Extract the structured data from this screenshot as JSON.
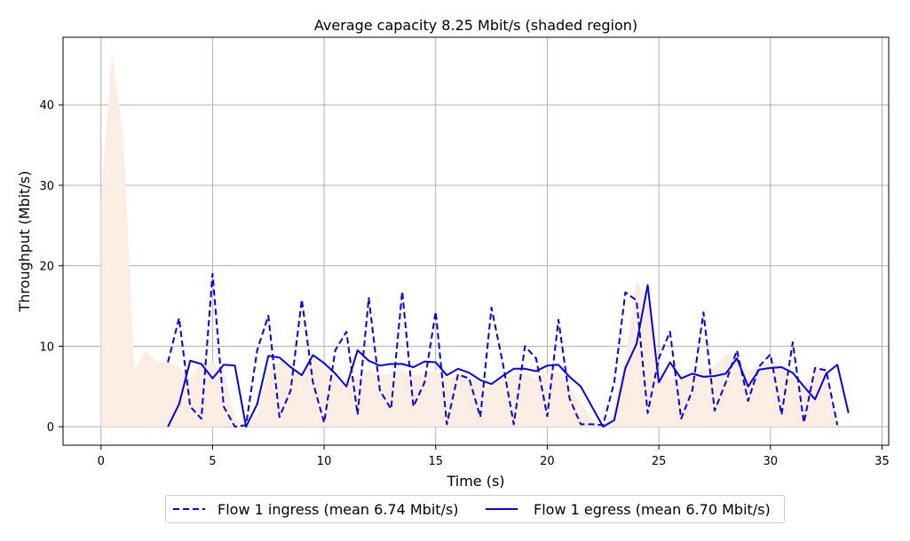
{
  "chart_data": {
    "type": "line",
    "title": "Average capacity 8.25 Mbit/s (shaded region)",
    "xlabel": "Time (s)",
    "ylabel": "Throughput (Mbit/s)",
    "xlim": [
      -1.7,
      35.3
    ],
    "ylim": [
      -2.3,
      48.4
    ],
    "xticks": [
      0,
      5,
      10,
      15,
      20,
      25,
      30,
      35
    ],
    "yticks": [
      0,
      10,
      20,
      30,
      40
    ],
    "grid": true,
    "legend_position": "bottom-center",
    "colors": {
      "capacity_fill": "#fbede2",
      "series": "#0000ee",
      "grid": "#b0b0b0"
    },
    "capacity": {
      "name": "Capacity",
      "x": [
        0,
        0.5,
        1.0,
        1.5,
        2.0,
        2.5,
        3.0,
        3.5,
        4.0,
        4.5,
        5.0,
        5.5,
        6.0,
        6.5,
        7.0,
        7.5,
        8.0,
        8.5,
        9.0,
        9.5,
        10.0,
        10.5,
        11.0,
        11.5,
        12.0,
        12.5,
        13.0,
        13.5,
        14.0,
        14.5,
        15.0,
        15.5,
        16.0,
        16.5,
        17.0,
        17.5,
        18.0,
        18.5,
        19.0,
        19.5,
        20.0,
        20.5,
        21.0,
        21.5,
        22.0,
        22.5,
        23.0,
        23.5,
        24.0,
        24.5,
        25.0,
        25.5,
        26.0,
        26.5,
        27.0,
        27.5,
        28.0,
        28.5,
        29.0,
        29.5,
        30.0,
        30.5,
        31.0,
        31.5,
        32.0,
        32.5,
        33.0
      ],
      "values": [
        28,
        46.5,
        36,
        7,
        9.5,
        8,
        8,
        7.5,
        6,
        8,
        8,
        7,
        1,
        0,
        1.5,
        7,
        8,
        7.5,
        6.5,
        8.5,
        7.5,
        6,
        5,
        6.5,
        7,
        6.5,
        6.5,
        7,
        6.5,
        6.5,
        7,
        6,
        6.5,
        6,
        5.5,
        5,
        6,
        6.5,
        6.5,
        6,
        6.5,
        7,
        5,
        3,
        1,
        0,
        2,
        9,
        18,
        16,
        7,
        6,
        6.5,
        6.5,
        7,
        7.5,
        9,
        8.5,
        7,
        7.5,
        8,
        7.5,
        6,
        5,
        7,
        7.5,
        0
      ]
    },
    "series": [
      {
        "name": "Flow 1 ingress (mean 6.74 Mbit/s)",
        "style": "dashed",
        "x": [
          3.0,
          3.5,
          4.0,
          4.5,
          5.0,
          5.5,
          6.0,
          6.5,
          7.0,
          7.5,
          8.0,
          8.5,
          9.0,
          9.5,
          10.0,
          10.5,
          11.0,
          11.5,
          12.0,
          12.5,
          13.0,
          13.5,
          14.0,
          14.5,
          15.0,
          15.5,
          16.0,
          16.5,
          17.0,
          17.5,
          18.0,
          18.5,
          19.0,
          19.5,
          20.0,
          20.5,
          21.0,
          21.5,
          22.0,
          22.5,
          23.0,
          23.5,
          24.0,
          24.5,
          25.0,
          25.5,
          26.0,
          26.5,
          27.0,
          27.5,
          28.0,
          28.5,
          29.0,
          29.5,
          30.0,
          30.5,
          31.0,
          31.5,
          32.0,
          32.5,
          33.0
        ],
        "values": [
          8,
          13.5,
          2.5,
          1,
          19,
          2.5,
          0,
          0.2,
          9.5,
          13.8,
          1.2,
          4.5,
          15.8,
          5.5,
          0.5,
          9.5,
          11.8,
          1.5,
          16,
          4.5,
          2.2,
          16.8,
          2.5,
          5.5,
          14.3,
          0.3,
          6.5,
          6,
          1.2,
          14.8,
          8,
          0.3,
          10,
          8.5,
          1.3,
          13.3,
          3.5,
          0.3,
          0.3,
          0.2,
          5.5,
          16.7,
          15.7,
          1.7,
          8.5,
          11.8,
          1,
          4.5,
          14.2,
          2,
          5.5,
          9.5,
          3.2,
          7.5,
          9,
          1.5,
          10.5,
          0.5,
          7.3,
          7,
          0.2
        ]
      },
      {
        "name": "Flow 1 egress (mean 6.70 Mbit/s)",
        "style": "solid",
        "x": [
          3.0,
          3.5,
          4.0,
          4.5,
          5.0,
          5.5,
          6.0,
          6.5,
          7.0,
          7.5,
          8.0,
          8.5,
          9.0,
          9.5,
          10.0,
          10.5,
          11.0,
          11.5,
          12.0,
          12.5,
          13.0,
          13.5,
          14.0,
          14.5,
          15.0,
          15.5,
          16.0,
          16.5,
          17.0,
          17.5,
          18.0,
          18.5,
          19.0,
          19.5,
          20.0,
          20.5,
          21.0,
          21.5,
          22.0,
          22.5,
          23.0,
          23.5,
          24.0,
          24.5,
          25.0,
          25.5,
          26.0,
          26.5,
          27.0,
          27.5,
          28.0,
          28.5,
          29.0,
          29.5,
          30.0,
          30.5,
          31.0,
          31.5,
          32.0,
          32.5,
          33.0,
          33.5
        ],
        "values": [
          0,
          2.8,
          8.2,
          7.8,
          6,
          7.7,
          7.6,
          0,
          2.8,
          8.8,
          8.6,
          7.4,
          6.4,
          8.9,
          7.9,
          6.6,
          5,
          9.5,
          8.2,
          7.6,
          7.8,
          7.8,
          7.4,
          8.1,
          8,
          6.4,
          7.2,
          6.7,
          5.8,
          5.3,
          6.3,
          7.2,
          7.2,
          6.9,
          7.6,
          7.7,
          6.2,
          5,
          2.5,
          0,
          0.8,
          7.3,
          10.3,
          17.6,
          5.5,
          8,
          6,
          6.6,
          6.2,
          6.3,
          6.6,
          8.5,
          5,
          7.1,
          7.3,
          7.4,
          6.7,
          5,
          3.4,
          6.6,
          7.7,
          1.7
        ]
      }
    ]
  }
}
